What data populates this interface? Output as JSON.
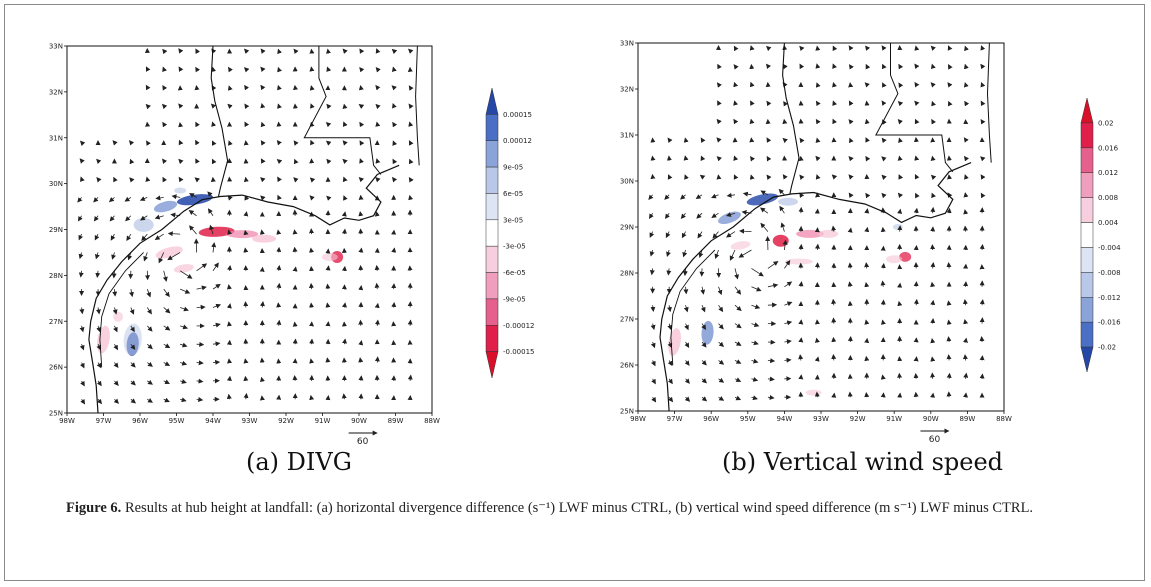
{
  "panels": [
    {
      "id": "a",
      "caption": "(a) DIVG",
      "lat_labels": [
        "33N",
        "32N",
        "31N",
        "30N",
        "29N",
        "28N",
        "27N",
        "26N",
        "25N"
      ],
      "lon_labels": [
        "98W",
        "97W",
        "96W",
        "95W",
        "94W",
        "93W",
        "92W",
        "91W",
        "90W",
        "89W",
        "88W"
      ],
      "colorbar_labels": [
        "0.00015",
        "0.00012",
        "9e-05",
        "6e-05",
        "3e-05",
        "-3e-05",
        "-6e-05",
        "-9e-05",
        "-0.00012",
        "-0.00015"
      ],
      "colorbar_colors": [
        "#2548a8",
        "#4a6fc4",
        "#8aa3d8",
        "#b9c7e8",
        "#dde4f4",
        "#ffffff",
        "#f7cede",
        "#ef9fbd",
        "#e5608d",
        "#e0204a",
        "#d8102a"
      ],
      "vector_ref_value": "60"
    },
    {
      "id": "b",
      "caption": "(b) Vertical wind speed",
      "lat_labels": [
        "33N",
        "32N",
        "31N",
        "30N",
        "29N",
        "28N",
        "27N",
        "26N",
        "25N"
      ],
      "lon_labels": [
        "98W",
        "97W",
        "96W",
        "95W",
        "94W",
        "93W",
        "92W",
        "91W",
        "90W",
        "89W",
        "88W"
      ],
      "colorbar_labels": [
        "0.02",
        "0.016",
        "0.012",
        "0.008",
        "0.004",
        "-0.004",
        "-0.008",
        "-0.012",
        "-0.016",
        "-0.02"
      ],
      "colorbar_colors": [
        "#d8102a",
        "#e0204a",
        "#e5608d",
        "#ef9fbd",
        "#f7cede",
        "#ffffff",
        "#dde4f4",
        "#b9c7e8",
        "#8aa3d8",
        "#4a6fc4",
        "#2548a8"
      ],
      "vector_ref_value": "60"
    }
  ],
  "figure_caption": {
    "label": "Figure 6.",
    "text": " Results at hub height at landfall: (a) horizontal divergence difference (s⁻¹) LWF minus CTRL, (b) vertical wind speed difference (m s⁻¹) LWF minus CTRL."
  }
}
